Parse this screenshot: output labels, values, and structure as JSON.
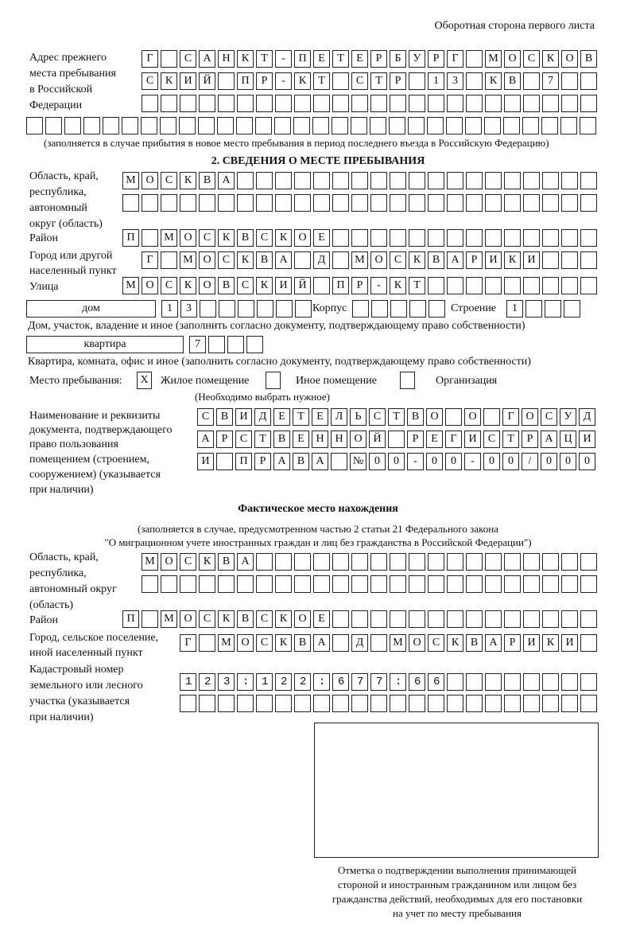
{
  "header": "Оборотная сторона первого листа",
  "prev_address": {
    "label": [
      "Адрес прежнего",
      "места пребывания",
      "в Российской",
      "Федерации"
    ],
    "rows": [
      "Г САНКТ-ПЕТЕРБУРГ МОСКОВ",
      "СКИЙ ПР-КТ СТР 13 КВ 7",
      "",
      ""
    ],
    "note": "(заполняется в случае прибытия в новое место пребывания в период последнего въезда в Российскую Федерацию)"
  },
  "section2": {
    "title": "2. СВЕДЕНИЯ О МЕСТЕ ПРЕБЫВАНИЯ",
    "region_label": [
      "Область, край,",
      "республика,",
      "автономный",
      "округ (область)"
    ],
    "region_rows": [
      "МОСКВА",
      ""
    ],
    "district_label": "Район",
    "district": "П МОСКВСКОЕ",
    "city_label": [
      "Город или другой",
      "населенный пункт"
    ],
    "city": "Г МОСКВА Д МОСКВАРИКИ",
    "street_label": "Улица",
    "street": "МОСКОВСКИЙ ПР-КТ",
    "house_type": "дом",
    "house": "13",
    "korpus_label": "Корпус",
    "korpus": "",
    "building_label": "Строение",
    "building": "1",
    "house_caption": "Дом, участок, владение и иное (заполнить согласно документу, подтверждающему право собственности)",
    "flat_type": "квартира",
    "flat": "7",
    "flat_caption": "Квартира, комната, офис и иное (заполнить согласно документу, подтверждающему право собственности)",
    "place_label": "Место пребывания:",
    "options": [
      {
        "label": "Жилое помещение",
        "checked": true,
        "mark": "X"
      },
      {
        "label": "Иное помещение",
        "checked": false
      },
      {
        "label": "Организация",
        "checked": false
      }
    ],
    "choose_note": "(Необходимо выбрать нужное)",
    "doc_label": [
      "Наименование и реквизиты",
      "документа, подтверждающего",
      "право пользования",
      "помещением (строением,",
      "сооружением) (указывается",
      "при наличии)"
    ],
    "doc_rows": [
      "СВИДЕТЕЛЬСТВО О ГОСУД",
      "АРСТВЕННОЙ РЕГИСТРАЦИ",
      "И ПРАВА №00-00-00/000"
    ]
  },
  "actual": {
    "title": "Фактическое место нахождения",
    "subtitle": [
      "(заполняется в случае, предусмотренном частью 2 статьи 21 Федерального закона",
      "\"О миграционном учете иностранных граждан и лиц без гражданства в Российской Федерации\")"
    ],
    "region_label": [
      "Область, край,",
      "республика,",
      "автономный округ",
      "(область)"
    ],
    "region_rows": [
      "МОСКВА",
      ""
    ],
    "district_label": "Район",
    "district": "П МОСКВСКОЕ",
    "city_label": [
      "Город, сельское поселение,",
      "иной населенный пункт"
    ],
    "city": "Г МОСКВА Д МОСКВАРИКИ",
    "cadastral_label": [
      "Кадастровый номер",
      "земельного или лесного",
      "участка (указывается",
      "при наличии)"
    ],
    "cadastral_rows": [
      "123:122:677:66",
      ""
    ]
  },
  "stamp_caption": [
    "Отметка о подтверждении выполнения принимающей",
    "стороной и иностранным гражданином или лицом без",
    "гражданства действий, необходимых для его постановки",
    "на учет по месту пребывания"
  ]
}
